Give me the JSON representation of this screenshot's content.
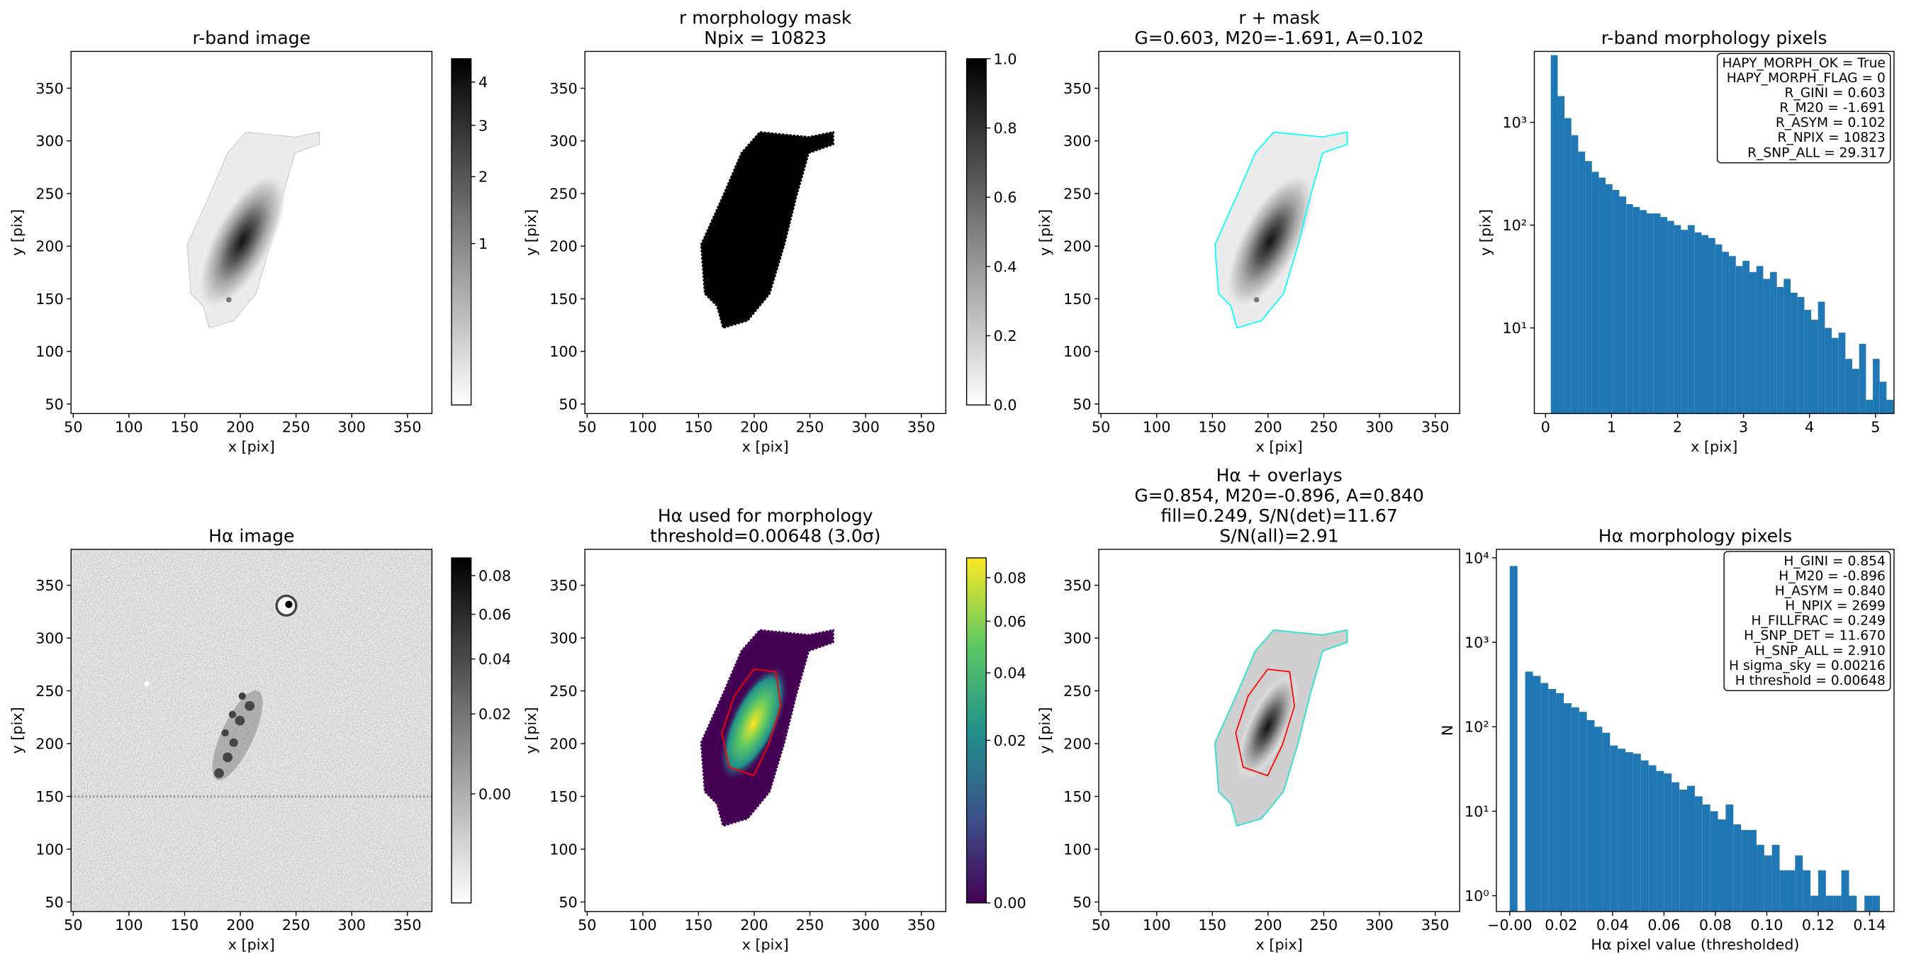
{
  "chart_data": [
    {
      "type": "image",
      "title": [
        "r-band image"
      ],
      "xlabel": "x [pix]",
      "ylabel": "y [pix]",
      "xlim": [
        48,
        372
      ],
      "ylim": [
        41,
        385
      ],
      "xticks": [
        50,
        100,
        150,
        200,
        250,
        300,
        350
      ],
      "yticks": [
        50,
        100,
        150,
        200,
        250,
        300,
        350
      ],
      "colorbar": {
        "cmap": "gray_r",
        "scale": "sqrt",
        "lim": [
          0,
          4.6
        ],
        "ticks": [
          1,
          2,
          3,
          4
        ]
      }
    },
    {
      "type": "image",
      "title": [
        "r morphology mask",
        "Npix = 10823"
      ],
      "xlabel": "x [pix]",
      "ylabel": "y [pix]",
      "xlim": [
        48,
        372
      ],
      "ylim": [
        41,
        385
      ],
      "xticks": [
        50,
        100,
        150,
        200,
        250,
        300,
        350
      ],
      "yticks": [
        50,
        100,
        150,
        200,
        250,
        300,
        350
      ],
      "colorbar": {
        "cmap": "gray_r",
        "scale": "linear",
        "lim": [
          0,
          1
        ],
        "ticks": [
          {
            "value": 0,
            "label": "0.0"
          },
          0.2,
          0.4,
          0.6,
          0.8,
          {
            "value": 1,
            "label": "1.0"
          }
        ]
      }
    },
    {
      "type": "image",
      "title": [
        "r + mask",
        "G=0.603, M20=-1.691, A=0.102"
      ],
      "xlabel": "x [pix]",
      "ylabel": "y [pix]",
      "xlim": [
        48,
        372
      ],
      "ylim": [
        41,
        385
      ],
      "xticks": [
        50,
        100,
        150,
        200,
        250,
        300,
        350
      ],
      "yticks": [
        50,
        100,
        150,
        200,
        250,
        300,
        350
      ],
      "contour_colors": [
        "#00ffff"
      ]
    },
    {
      "type": "histogram",
      "title": [
        "r-band morphology pixels"
      ],
      "xlabel": "x [pix]",
      "ylabel": "y [pix]",
      "color": "#1f77b4",
      "log_y": true,
      "bins": [
        0.08,
        0.184,
        0.288,
        0.391,
        0.495,
        0.599,
        0.703,
        0.807,
        0.91,
        1.014,
        1.118,
        1.222,
        1.326,
        1.429,
        1.533,
        1.637,
        1.741,
        1.845,
        1.948,
        2.052,
        2.156,
        2.26,
        2.364,
        2.467,
        2.571,
        2.675,
        2.779,
        2.883,
        2.986,
        3.09,
        3.194,
        3.298,
        3.402,
        3.505,
        3.609,
        3.713,
        3.817,
        3.921,
        4.024,
        4.128,
        4.232,
        4.336,
        4.44,
        4.543,
        4.647,
        4.751,
        4.855,
        4.959,
        5.062,
        5.166,
        5.27
      ],
      "counts": [
        4500,
        1800,
        1100,
        750,
        520,
        420,
        330,
        290,
        250,
        220,
        190,
        160,
        150,
        140,
        130,
        130,
        120,
        110,
        100,
        90,
        100,
        85,
        80,
        75,
        65,
        55,
        50,
        40,
        45,
        35,
        40,
        30,
        35,
        25,
        30,
        22,
        20,
        15,
        12,
        18,
        10,
        8,
        9,
        5,
        4,
        7,
        2,
        5,
        3,
        2
      ],
      "xlim": [
        -0.17,
        5.28
      ],
      "ylim": [
        1.47,
        4900
      ],
      "xticks": [
        0,
        1,
        2,
        3,
        4,
        5
      ],
      "yticks": [
        {
          "value": 10,
          "label": "10¹"
        },
        {
          "value": 100,
          "label": "10²"
        },
        {
          "value": 1000,
          "label": "10³"
        }
      ],
      "annotation": [
        "HAPY_MORPH_OK = True",
        "HAPY_MORPH_FLAG = 0",
        "R_GINI = 0.603",
        "R_M20 = -1.691",
        "R_ASYM = 0.102",
        "R_NPIX = 10823",
        "R_SNP_ALL = 29.317"
      ]
    },
    {
      "type": "image",
      "title": [
        "Hα image"
      ],
      "xlabel": "x [pix]",
      "ylabel": "y [pix]",
      "xlim": [
        48,
        372
      ],
      "ylim": [
        41,
        384
      ],
      "xticks": [
        50,
        100,
        150,
        200,
        250,
        300,
        350
      ],
      "yticks": [
        50,
        100,
        150,
        200,
        250,
        300,
        350
      ],
      "colorbar": {
        "cmap": "gray_r",
        "scale": "sqrt",
        "lim": [
          -0.01,
          0.09
        ],
        "ticks": [
          {
            "value": 0,
            "label": "0.00"
          },
          0.02,
          0.04,
          0.06,
          0.08
        ]
      }
    },
    {
      "type": "image",
      "title": [
        "Hα used for morphology",
        "threshold=0.00648 (3.0σ)"
      ],
      "xlabel": "x [pix]",
      "ylabel": "y [pix]",
      "xlim": [
        48,
        372
      ],
      "ylim": [
        41,
        384
      ],
      "xticks": [
        50,
        100,
        150,
        200,
        250,
        300,
        350
      ],
      "yticks": [
        50,
        100,
        150,
        200,
        250,
        300,
        350
      ],
      "contour_colors": [
        "#ff0000"
      ],
      "colorbar": {
        "cmap": "viridis",
        "scale": "sqrt",
        "lim": [
          0,
          0.09
        ],
        "ticks": [
          {
            "value": 0,
            "label": "0.00"
          },
          0.02,
          0.04,
          0.06,
          0.08
        ]
      }
    },
    {
      "type": "image",
      "title": [
        "Hα + overlays",
        "G=0.854, M20=-0.896, A=0.840",
        "fill=0.249, S/N(det)=11.67",
        "S/N(all)=2.91"
      ],
      "xlabel": "x [pix]",
      "ylabel": "y [pix]",
      "xlim": [
        48,
        372
      ],
      "ylim": [
        41,
        384
      ],
      "xticks": [
        50,
        100,
        150,
        200,
        250,
        300,
        350
      ],
      "yticks": [
        50,
        100,
        150,
        200,
        250,
        300,
        350
      ],
      "contour_colors": [
        "#40e0d0",
        "#ff0000"
      ]
    },
    {
      "type": "histogram",
      "title": [
        "Hα morphology pixels"
      ],
      "xlabel": "Hα pixel value (thresholded)",
      "ylabel": "N",
      "color": "#1f77b4",
      "log_y": true,
      "bins": [
        0,
        0.003,
        0.006,
        0.009,
        0.012,
        0.015,
        0.018,
        0.021,
        0.024,
        0.027,
        0.03,
        0.033,
        0.036,
        0.039,
        0.042,
        0.045,
        0.048,
        0.051,
        0.054,
        0.057,
        0.06,
        0.063,
        0.066,
        0.069,
        0.072,
        0.075,
        0.078,
        0.081,
        0.084,
        0.087,
        0.09,
        0.093,
        0.096,
        0.099,
        0.102,
        0.105,
        0.108,
        0.111,
        0.114,
        0.117,
        0.12,
        0.123,
        0.126,
        0.129,
        0.132,
        0.135,
        0.138,
        0.141,
        0.144
      ],
      "counts": [
        8000,
        0,
        450,
        400,
        330,
        280,
        250,
        190,
        170,
        150,
        120,
        100,
        85,
        60,
        55,
        50,
        48,
        40,
        35,
        30,
        28,
        22,
        18,
        20,
        15,
        12,
        10,
        8,
        12,
        7,
        6,
        6,
        4,
        3,
        4,
        2,
        2,
        3,
        2,
        1,
        2,
        1,
        1,
        2,
        1,
        0,
        1,
        1
      ],
      "xlim": [
        -0.0052,
        0.1495
      ],
      "ylim": [
        0.65,
        12600
      ],
      "xticks": [
        {
          "value": 0,
          "label": "−0.00"
        },
        0.02,
        0.04,
        0.06,
        0.08,
        {
          "value": 0.1,
          "label": "0.10"
        },
        0.12,
        0.14
      ],
      "yticks": [
        {
          "value": 1,
          "label": "10⁰"
        },
        {
          "value": 10,
          "label": "10¹"
        },
        {
          "value": 100,
          "label": "10²"
        },
        {
          "value": 1000,
          "label": "10³"
        },
        {
          "value": 10000,
          "label": "10⁴"
        }
      ],
      "annotation": [
        "H_GINI = 0.854",
        "H_M20 = -0.896",
        "H_ASYM = 0.840",
        "H_NPIX = 2699",
        "H_FILLFRAC = 0.249",
        "H_SNP_DET = 11.670",
        "H_SNP_ALL = 2.910",
        "H sigma_sky = 0.00216",
        "H threshold = 0.00648"
      ]
    }
  ]
}
